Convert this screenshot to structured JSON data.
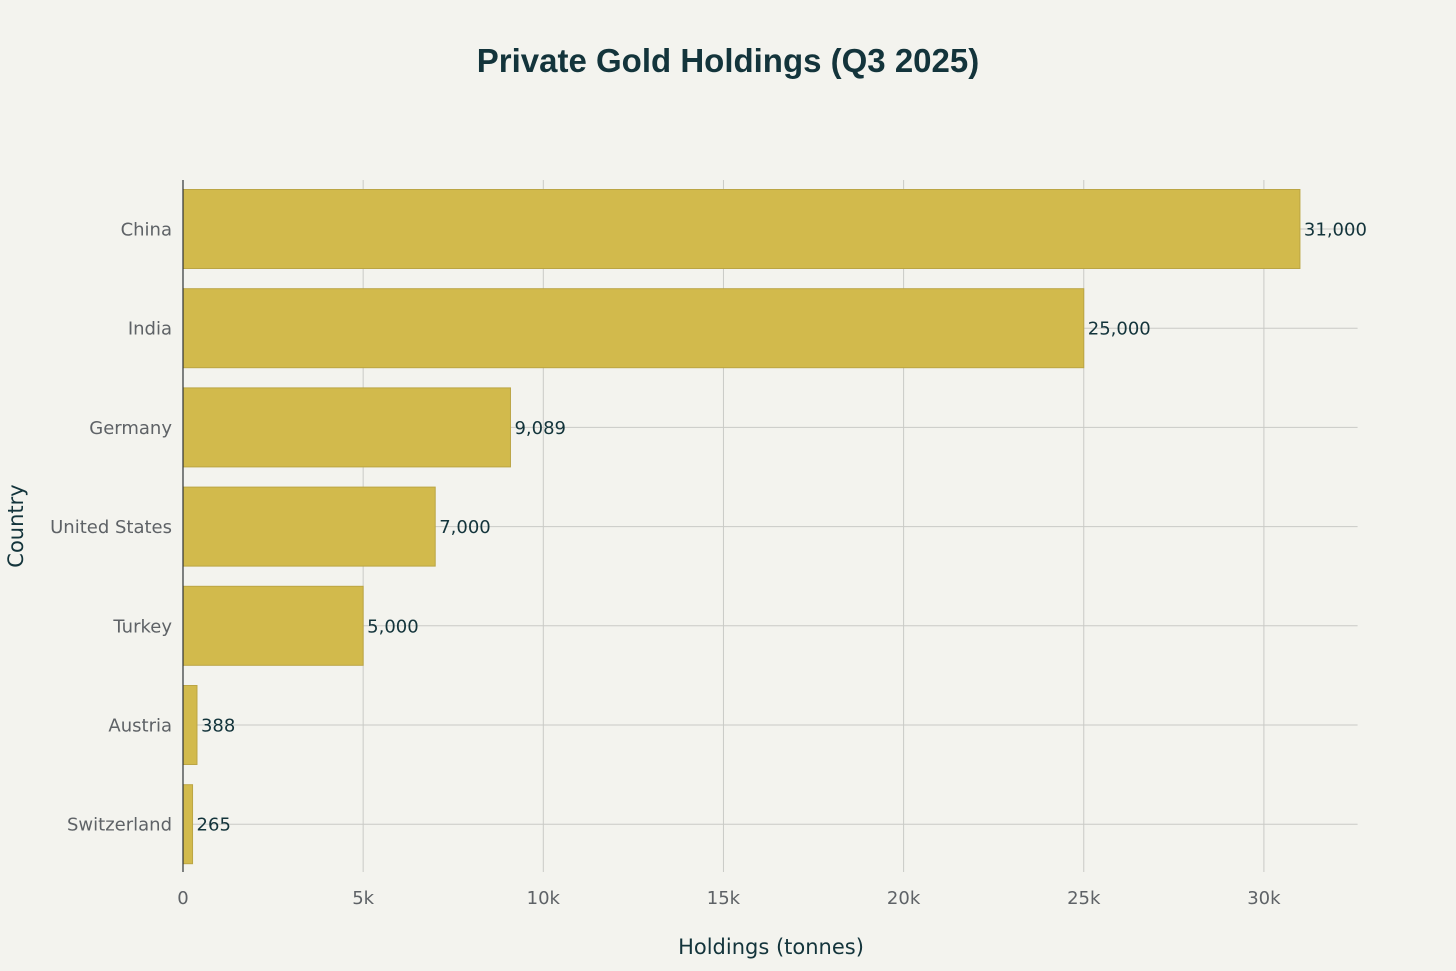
{
  "chart_data": {
    "type": "bar",
    "orientation": "horizontal",
    "title": "Private Gold Holdings (Q3 2025)",
    "xlabel": "Holdings (tonnes)",
    "ylabel": "Country",
    "categories": [
      "China",
      "India",
      "Germany",
      "United States",
      "Turkey",
      "Austria",
      "Switzerland"
    ],
    "values": [
      31000,
      25000,
      9089,
      7000,
      5000,
      388,
      265
    ],
    "value_labels": [
      "31,000",
      "25,000",
      "9,089",
      "7,000",
      "5,000",
      "388",
      "265"
    ],
    "xlim": [
      0,
      32600
    ],
    "x_ticks": [
      0,
      5000,
      10000,
      15000,
      20000,
      25000,
      30000
    ],
    "x_tick_labels": [
      "0",
      "5k",
      "10k",
      "15k",
      "20k",
      "25k",
      "30k"
    ],
    "grid": true,
    "legend": "none",
    "colors": {
      "bar": "#d2ba4c",
      "bar_edge": "#bba544",
      "background": "#f3f3ee",
      "grid": "#c9cac6",
      "title": "#13343b"
    }
  }
}
